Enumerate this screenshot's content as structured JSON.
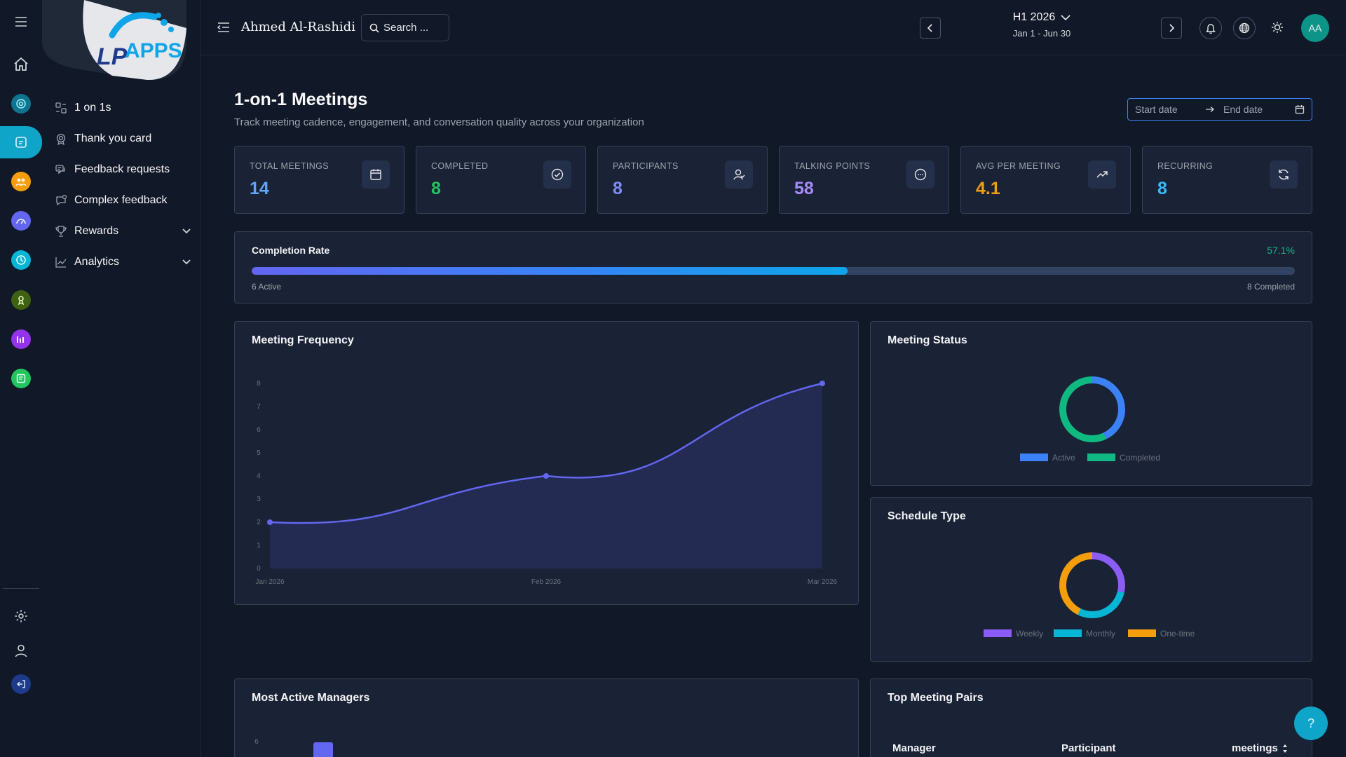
{
  "rail": {
    "items": [
      {
        "name": "menu-icon"
      },
      {
        "name": "home-icon"
      },
      {
        "name": "target-icon",
        "color": "#0e7490"
      },
      {
        "name": "feedback-icon",
        "color": "#0ea5c9"
      },
      {
        "name": "people-icon",
        "color": "#f59e0b"
      },
      {
        "name": "gauge-icon",
        "color": "#6366f1"
      },
      {
        "name": "clock-icon",
        "color": "#06b6d4"
      },
      {
        "name": "award-icon",
        "color": "#4d7c0f"
      },
      {
        "name": "chart-icon",
        "color": "#9333ea"
      },
      {
        "name": "board-icon",
        "color": "#22c55e"
      },
      {
        "name": "settings-icon"
      },
      {
        "name": "user-icon"
      },
      {
        "name": "logout-icon"
      }
    ]
  },
  "logo": {
    "text": "APPS",
    "prefix": "LP"
  },
  "sidebar": {
    "items": [
      {
        "label": "1 on 1s",
        "icon": "people-icon"
      },
      {
        "label": "Thank you card",
        "icon": "badge-icon"
      },
      {
        "label": "Feedback requests",
        "icon": "feedback-icon"
      },
      {
        "label": "Complex feedback",
        "icon": "chat-icon"
      },
      {
        "label": "Rewards",
        "icon": "trophy-icon",
        "expandable": true
      },
      {
        "label": "Analytics",
        "icon": "chart-icon",
        "expandable": true
      }
    ]
  },
  "topbar": {
    "user_name": "Ahmed Al-Rashidi",
    "search_placeholder": "Search ...",
    "period_title": "H1 2026",
    "period_range": "Jan 1 - Jun 30",
    "avatar_initials": "AA"
  },
  "page": {
    "title": "1-on-1 Meetings",
    "subtitle": "Track meeting cadence, engagement, and conversation quality across your organization",
    "date_start_placeholder": "Start date",
    "date_end_placeholder": "End date"
  },
  "stats": [
    {
      "label": "TOTAL MEETINGS",
      "value": "14",
      "color": "#60a5fa",
      "icon": "calendar-icon"
    },
    {
      "label": "COMPLETED",
      "value": "8",
      "color": "#22c55e",
      "icon": "check-circle-icon"
    },
    {
      "label": "PARTICIPANTS",
      "value": "8",
      "color": "#818cf8",
      "icon": "participants-icon"
    },
    {
      "label": "TALKING POINTS",
      "value": "58",
      "color": "#a78bfa",
      "icon": "message-icon"
    },
    {
      "label": "AVG PER MEETING",
      "value": "4.1",
      "color": "#f59e0b",
      "icon": "trend-up-icon"
    },
    {
      "label": "RECURRING",
      "value": "8",
      "color": "#38bdf8",
      "icon": "refresh-icon"
    }
  ],
  "completion": {
    "title": "Completion Rate",
    "percent_label": "57.1%",
    "fraction": 0.571,
    "active_label": "6 Active",
    "completed_label": "8 Completed"
  },
  "frequency_card": {
    "title": "Meeting Frequency"
  },
  "status_card": {
    "title": "Meeting Status"
  },
  "schedule_card": {
    "title": "Schedule Type"
  },
  "managers_card": {
    "title": "Most Active Managers"
  },
  "pairs_card": {
    "title": "Top Meeting Pairs",
    "columns": [
      "Manager",
      "Participant",
      "meetings"
    ]
  },
  "chart_data": [
    {
      "type": "area",
      "title": "Meeting Frequency",
      "x": [
        "Jan 2026",
        "Feb 2026",
        "Mar 2026"
      ],
      "values": [
        2,
        4,
        8
      ],
      "ylim": [
        0,
        8
      ],
      "yticks": [
        0,
        1,
        2,
        3,
        4,
        5,
        6,
        7,
        8
      ],
      "color": "#6366f1"
    },
    {
      "type": "pie",
      "title": "Meeting Status",
      "labels": [
        "Active",
        "Completed"
      ],
      "values": [
        6,
        8
      ],
      "colors": [
        "#3b82f6",
        "#10b981"
      ]
    },
    {
      "type": "pie",
      "title": "Schedule Type",
      "labels": [
        "Weekly",
        "Monthly",
        "One-time"
      ],
      "values": [
        4,
        4,
        6
      ],
      "colors": [
        "#8b5cf6",
        "#06b6d4",
        "#f59e0b"
      ]
    },
    {
      "type": "bar",
      "title": "Most Active Managers",
      "yticks": [
        6
      ],
      "values": [
        6
      ],
      "color": "#6366f1"
    }
  ]
}
